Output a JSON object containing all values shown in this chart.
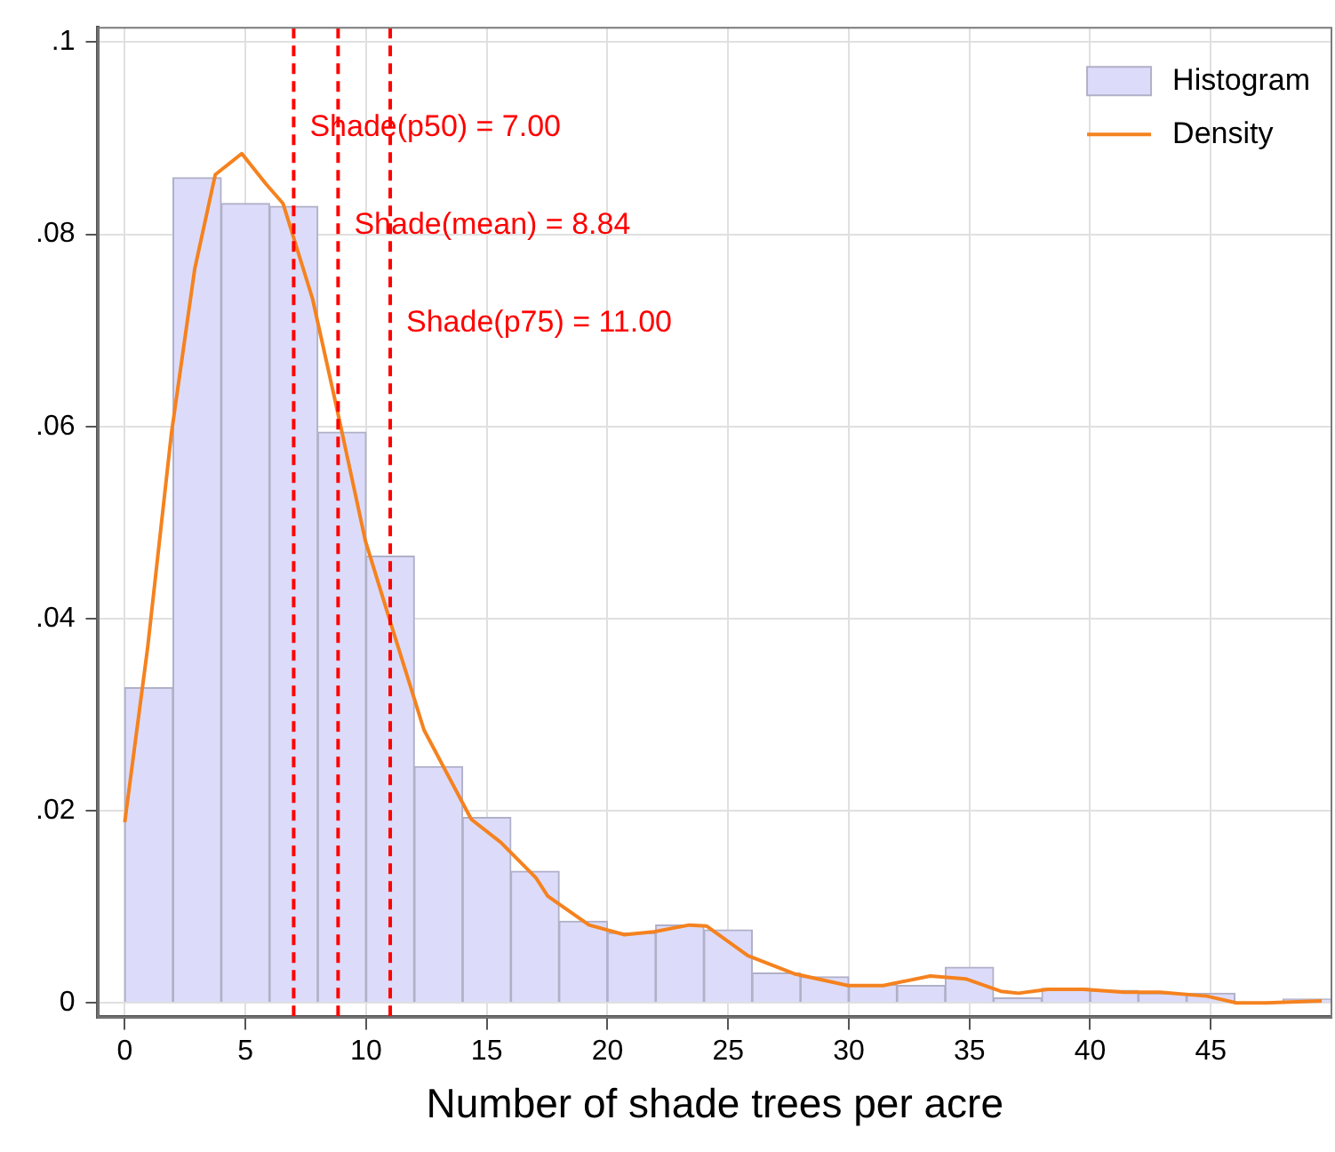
{
  "chart_data": {
    "type": "histogram",
    "xlabel": "Number of shade trees per acre",
    "xlim": [
      -1.1,
      50
    ],
    "xticks": [
      0,
      5,
      10,
      15,
      20,
      25,
      30,
      35,
      40,
      45
    ],
    "ylim": [
      -0.0015,
      0.1015
    ],
    "yticks": [
      {
        "value": 0,
        "label": "0"
      },
      {
        "value": 0.02,
        "label": ".02"
      },
      {
        "value": 0.04,
        "label": ".04"
      },
      {
        "value": 0.06,
        "label": ".06"
      },
      {
        "value": 0.08,
        "label": ".08"
      },
      {
        "value": 0.1,
        "label": ".1"
      }
    ],
    "grid": true,
    "legend": "top right",
    "series": [
      {
        "name": "Histogram",
        "type": "histogram",
        "color": "#dcdcfa",
        "bins": [
          0,
          2,
          4,
          6,
          8,
          10,
          12,
          14,
          16,
          18,
          20,
          22,
          24,
          26,
          28,
          30,
          32,
          34,
          36,
          38,
          40,
          42,
          44,
          46,
          48,
          50
        ],
        "values": [
          0.0328,
          0.0859,
          0.0832,
          0.0829,
          0.0594,
          0.0465,
          0.0246,
          0.0193,
          0.0137,
          0.0085,
          0.0073,
          0.0081,
          0.0076,
          0.0031,
          0.0027,
          0.0019,
          0.0018,
          0.0037,
          0.0005,
          0.0015,
          0.0013,
          0.001,
          0.001,
          0,
          0.0004
        ]
      },
      {
        "name": "Density",
        "type": "line",
        "color": "#f5821f",
        "x": [
          0,
          0.95,
          1.93,
          2.9,
          3.75,
          4.85,
          5.83,
          6.56,
          7.78,
          8.76,
          9.97,
          10.95,
          12.4,
          14.36,
          15.58,
          17.04,
          17.53,
          19.24,
          20.7,
          21.93,
          23.39,
          24.1,
          25.82,
          27.78,
          29.97,
          31.43,
          33.38,
          34.84,
          36.3,
          37.03,
          38.25,
          39.72,
          41.43,
          42.89,
          44.84,
          46.06,
          47.28,
          49.6
        ],
        "values": [
          0.0188,
          0.037,
          0.0592,
          0.0764,
          0.0862,
          0.0884,
          0.0853,
          0.0832,
          0.0733,
          0.0622,
          0.0481,
          0.0401,
          0.0284,
          0.0191,
          0.0167,
          0.013,
          0.0111,
          0.0081,
          0.0071,
          0.0074,
          0.0081,
          0.008,
          0.0049,
          0.003,
          0.0018,
          0.0018,
          0.0028,
          0.0025,
          0.0012,
          0.001,
          0.0014,
          0.0014,
          0.0011,
          0.0011,
          0.0007,
          0,
          0,
          0.0002
        ]
      }
    ],
    "ref_lines": [
      {
        "axis": "x",
        "value": 7,
        "label": "Shade(p50) = 7.00",
        "color": "#ff0000",
        "line_style": "dashed"
      },
      {
        "axis": "x",
        "value": 8.84,
        "label": "Shade(mean) = 8.84",
        "color": "#ff0000",
        "line_style": "dashed"
      },
      {
        "axis": "x",
        "value": 11,
        "label": "Shade(p75) = 11.00",
        "color": "#ff0000",
        "line_style": "dashed"
      }
    ]
  }
}
